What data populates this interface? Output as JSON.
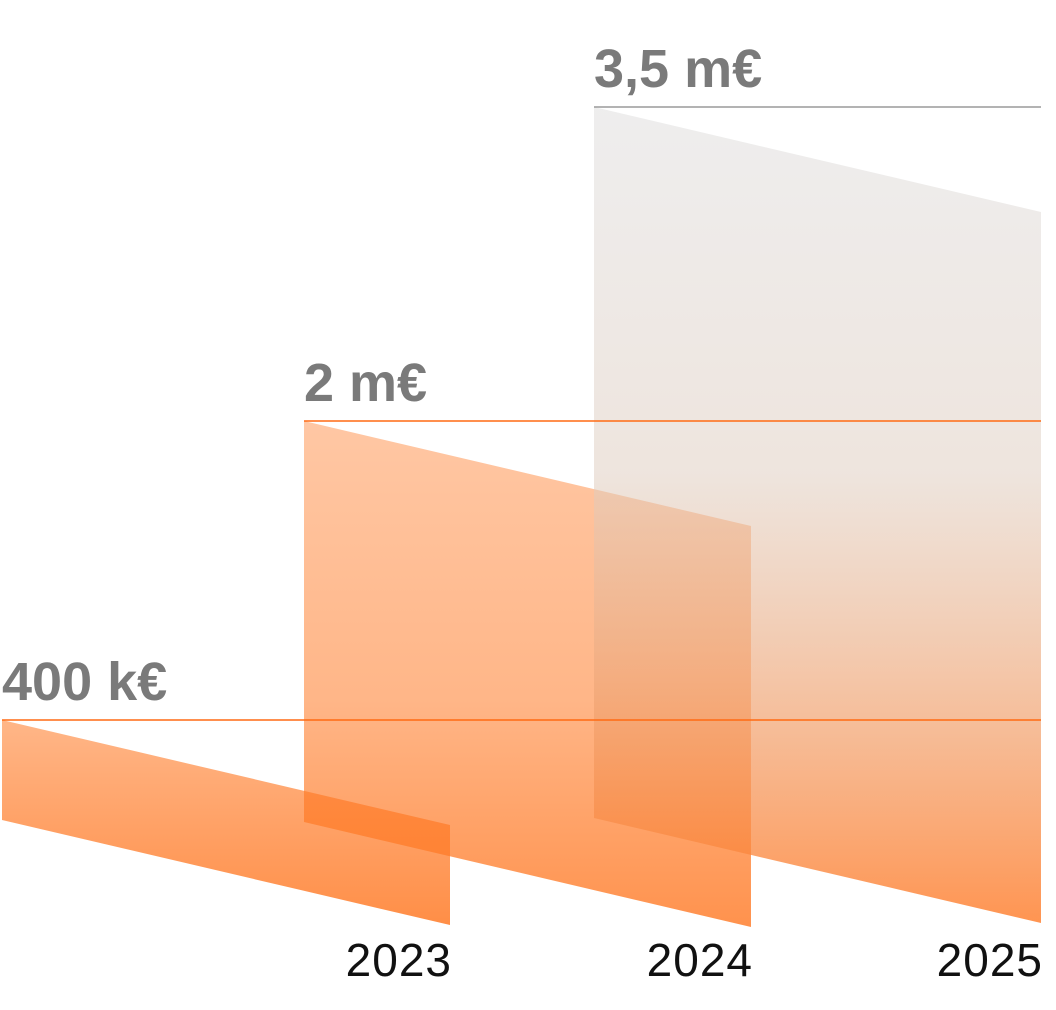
{
  "chart_data": {
    "type": "bar",
    "categories": [
      "2023",
      "2024",
      "2025"
    ],
    "values": [
      0.4,
      2,
      3.5
    ],
    "value_labels": [
      "400 k€",
      "2 m€",
      "3,5 m€"
    ],
    "unit": "m€",
    "colors": {
      "accent": "#ff6a13",
      "label": "#7a7a7a",
      "year": "#111111",
      "projection": "#d8d8d8"
    },
    "styles": [
      "actual",
      "actual",
      "projection"
    ],
    "grid": false,
    "legend": "none"
  }
}
